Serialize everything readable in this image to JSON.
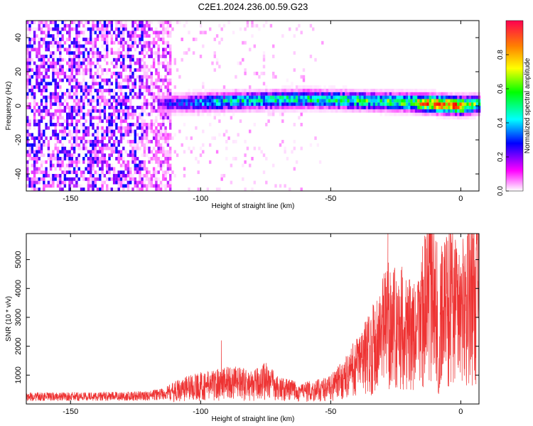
{
  "page_title": "C2E1.2024.236.00.59.G23",
  "chart_data": [
    {
      "type": "heatmap",
      "title": "C2E1.2024.236.00.59.G23",
      "xlabel": "Height of straight line (km)",
      "ylabel": "Frequency (Hz)",
      "xlim": [
        -167,
        7
      ],
      "ylim": [
        -50,
        50
      ],
      "xticks": [
        -150,
        -100,
        -50,
        0
      ],
      "yticks": [
        -40,
        -20,
        0,
        20,
        40
      ],
      "colorbar": {
        "label": "Normalized spectral amplitude",
        "range": [
          0.0,
          1.0
        ],
        "ticks": [
          0.0,
          0.2,
          0.4,
          0.6,
          0.8
        ],
        "tick_labels": [
          "0.0",
          "0.2",
          "0.4",
          "0.6",
          "0.8"
        ],
        "colormap": [
          "#ffffff",
          "#ff00ff",
          "#0000ff",
          "#00ffff",
          "#00ff00",
          "#ffff00",
          "#ff8000",
          "#ff0000"
        ]
      },
      "features": {
        "noise_region_x": [
          -167,
          -112
        ],
        "noise_amplitude": 0.3,
        "signal_band": [
          {
            "x": -115,
            "freq": 0
          },
          {
            "x": -100,
            "freq": 1
          },
          {
            "x": -80,
            "freq": 2
          },
          {
            "x": -60,
            "freq": 3
          },
          {
            "x": -40,
            "freq": 2
          },
          {
            "x": -20,
            "freq": 1
          },
          {
            "x": -10,
            "freq": 0
          },
          {
            "x": 0,
            "freq": -1
          },
          {
            "x": 7,
            "freq": 0
          }
        ],
        "signal_amplitude": [
          {
            "x": -115,
            "amp": 0.25
          },
          {
            "x": -95,
            "amp": 0.45
          },
          {
            "x": -70,
            "amp": 0.5
          },
          {
            "x": -40,
            "amp": 0.55
          },
          {
            "x": -20,
            "amp": 0.6
          },
          {
            "x": -12,
            "amp": 0.95
          },
          {
            "x": 0,
            "amp": 0.9
          },
          {
            "x": 7,
            "amp": 0.5
          }
        ]
      }
    },
    {
      "type": "line",
      "xlabel": "Height of straight line (km)",
      "ylabel": "SNR (10 * v/v)",
      "xlim": [
        -167,
        7
      ],
      "ylim": [
        0,
        5900
      ],
      "xticks": [
        -150,
        -100,
        -50,
        0
      ],
      "yticks": [
        1000,
        2000,
        3000,
        4000,
        5000
      ],
      "series": [
        {
          "color": "#ee3333",
          "x": [
            -167,
            -140,
            -120,
            -112,
            -105,
            -100,
            -95,
            -90,
            -85,
            -80,
            -75,
            -70,
            -65,
            -60,
            -55,
            -50,
            -45,
            -40,
            -35,
            -30,
            -27,
            -25,
            -22,
            -19,
            -17,
            -15,
            -12,
            -10,
            -8,
            -6,
            -3,
            0,
            3,
            5,
            7
          ],
          "y": [
            250,
            260,
            280,
            400,
            600,
            650,
            700,
            800,
            750,
            650,
            900,
            550,
            500,
            450,
            500,
            600,
            900,
            1400,
            1900,
            2600,
            3100,
            2700,
            2900,
            2500,
            2400,
            3300,
            3800,
            3700,
            3300,
            3600,
            3900,
            3300,
            3800,
            4000,
            4200
          ]
        }
      ],
      "spikes": [
        {
          "x": -92,
          "y": 2200
        },
        {
          "x": -28,
          "y": 5900
        },
        {
          "x": -6,
          "y": 5300
        },
        {
          "x": 5,
          "y": 5200
        }
      ]
    }
  ]
}
